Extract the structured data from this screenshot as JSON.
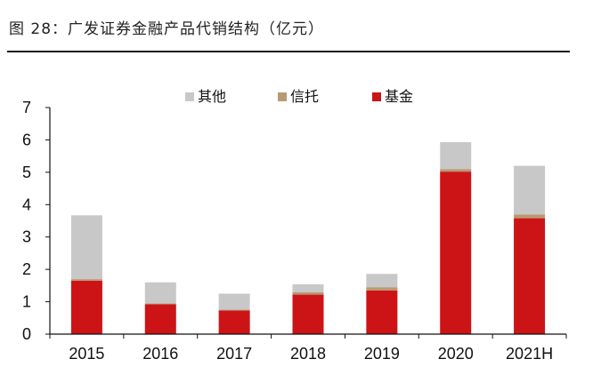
{
  "header": {
    "title": "图 28：广发证券金融产品代销结构（亿元）"
  },
  "colors": {
    "其他": "#c8c8c8",
    "信托": "#b89a72",
    "基金": "#cc1417"
  },
  "chart_data": {
    "type": "bar",
    "stacked": true,
    "categories": [
      "2015",
      "2016",
      "2017",
      "2018",
      "2019",
      "2020",
      "2021H"
    ],
    "series": [
      {
        "name": "基金",
        "values": [
          1.65,
          0.92,
          0.73,
          1.22,
          1.35,
          5.02,
          3.58
        ]
      },
      {
        "name": "信托",
        "values": [
          0.05,
          0.03,
          0.03,
          0.07,
          0.1,
          0.08,
          0.12
        ]
      },
      {
        "name": "其他",
        "values": [
          1.97,
          0.65,
          0.49,
          0.25,
          0.41,
          0.83,
          1.5
        ]
      }
    ],
    "legend_order": [
      "其他",
      "信托",
      "基金"
    ],
    "legend_position": "top",
    "ylim": [
      0,
      7
    ],
    "yticks": [
      "0",
      "1",
      "2",
      "3",
      "4",
      "5",
      "6",
      "7"
    ],
    "grid": false,
    "xlabel": "",
    "ylabel": ""
  }
}
